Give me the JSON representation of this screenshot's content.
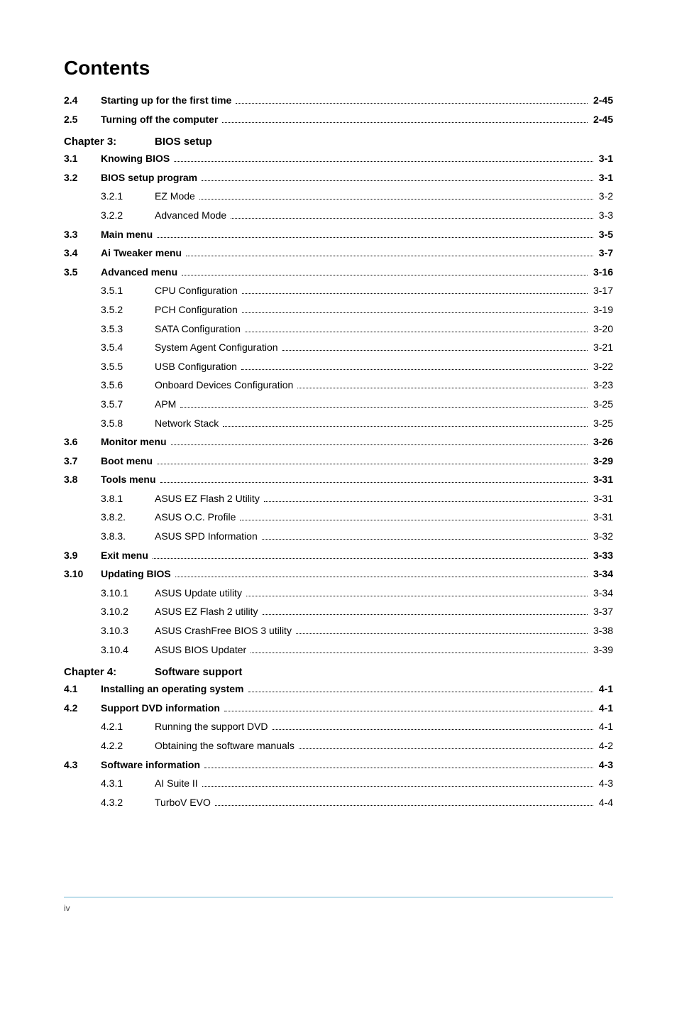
{
  "title": "Contents",
  "sections": [
    {
      "type": "row",
      "bold": true,
      "num": "2.4",
      "title": "Starting up for the first time",
      "page": "2-45"
    },
    {
      "type": "row",
      "bold": true,
      "num": "2.5",
      "title": "Turning off the computer",
      "page": "2-45"
    },
    {
      "type": "chapter",
      "label": "Chapter 3:",
      "title": "BIOS setup"
    },
    {
      "type": "row",
      "bold": true,
      "num": "3.1",
      "title": "Knowing BIOS",
      "page": "3-1"
    },
    {
      "type": "row",
      "bold": true,
      "num": "3.2",
      "title": "BIOS setup program",
      "page": "3-1"
    },
    {
      "type": "subrow",
      "num": "3.2.1",
      "title": "EZ Mode",
      "page": "3-2"
    },
    {
      "type": "subrow",
      "num": "3.2.2",
      "title": "Advanced Mode",
      "page": "3-3"
    },
    {
      "type": "row",
      "bold": true,
      "num": "3.3",
      "title": "Main menu",
      "page": "3-5"
    },
    {
      "type": "row",
      "bold": true,
      "num": "3.4",
      "title": "Ai Tweaker menu",
      "page": "3-7"
    },
    {
      "type": "row",
      "bold": true,
      "num": "3.5",
      "title": "Advanced menu",
      "page": "3-16"
    },
    {
      "type": "subrow",
      "num": "3.5.1",
      "title": "CPU Configuration",
      "page": "3-17"
    },
    {
      "type": "subrow",
      "num": "3.5.2",
      "title": "PCH Configuration",
      "page": "3-19"
    },
    {
      "type": "subrow",
      "num": "3.5.3",
      "title": "SATA Configuration",
      "page": "3-20"
    },
    {
      "type": "subrow",
      "num": "3.5.4",
      "title": "System Agent Configuration",
      "page": "3-21"
    },
    {
      "type": "subrow",
      "num": "3.5.5",
      "title": "USB Configuration",
      "page": "3-22"
    },
    {
      "type": "subrow",
      "num": "3.5.6",
      "title": "Onboard Devices Configuration",
      "page": "3-23"
    },
    {
      "type": "subrow",
      "num": "3.5.7",
      "title": "APM",
      "page": "3-25"
    },
    {
      "type": "subrow",
      "num": "3.5.8",
      "title": "Network Stack",
      "page": "3-25"
    },
    {
      "type": "row",
      "bold": true,
      "num": "3.6",
      "title": "Monitor menu",
      "page": "3-26"
    },
    {
      "type": "row",
      "bold": true,
      "num": "3.7",
      "title": "Boot menu",
      "page": "3-29"
    },
    {
      "type": "row",
      "bold": true,
      "num": "3.8",
      "title": "Tools menu",
      "page": "3-31"
    },
    {
      "type": "subrow",
      "num": "3.8.1",
      "title": "ASUS EZ Flash 2 Utility",
      "page": "3-31"
    },
    {
      "type": "subrow",
      "num": "3.8.2.",
      "title": "ASUS O.C. Profile",
      "page": "3-31"
    },
    {
      "type": "subrow",
      "num": "3.8.3.",
      "title": "ASUS SPD Information",
      "page": "3-32"
    },
    {
      "type": "row",
      "bold": true,
      "num": "3.9",
      "title": "Exit menu",
      "page": "3-33"
    },
    {
      "type": "row",
      "bold": true,
      "num": "3.10",
      "title": "Updating BIOS",
      "page": "3-34"
    },
    {
      "type": "subrow",
      "num": "3.10.1",
      "title": "ASUS Update utility",
      "page": "3-34"
    },
    {
      "type": "subrow",
      "num": "3.10.2",
      "title": "ASUS EZ Flash 2 utility",
      "page": "3-37"
    },
    {
      "type": "subrow",
      "num": "3.10.3",
      "title": "ASUS CrashFree BIOS 3 utility",
      "page": "3-38"
    },
    {
      "type": "subrow",
      "num": "3.10.4",
      "title": "ASUS BIOS Updater",
      "page": "3-39"
    },
    {
      "type": "chapter",
      "label": "Chapter 4:",
      "title": "Software support"
    },
    {
      "type": "row",
      "bold": true,
      "num": "4.1",
      "title": "Installing an operating system",
      "page": "4-1"
    },
    {
      "type": "row",
      "bold": true,
      "num": "4.2",
      "title": "Support DVD information",
      "page": "4-1"
    },
    {
      "type": "subrow",
      "num": "4.2.1",
      "title": "Running the support DVD",
      "page": "4-1"
    },
    {
      "type": "subrow",
      "num": "4.2.2",
      "title": "Obtaining the software manuals",
      "page": "4-2"
    },
    {
      "type": "row",
      "bold": true,
      "num": "4.3",
      "title": "Software information",
      "page": "4-3"
    },
    {
      "type": "subrow",
      "num": "4.3.1",
      "title": "AI Suite II",
      "page": "4-3"
    },
    {
      "type": "subrow",
      "num": "4.3.2",
      "title": "TurboV EVO",
      "page": "4-4"
    }
  ],
  "footer": "iv",
  "colors": {
    "text": "#000000",
    "background": "#ffffff",
    "rule": "#69b5d1"
  },
  "typography": {
    "title_fontsize": 28,
    "body_fontsize": 14,
    "chapter_fontsize": 15
  }
}
